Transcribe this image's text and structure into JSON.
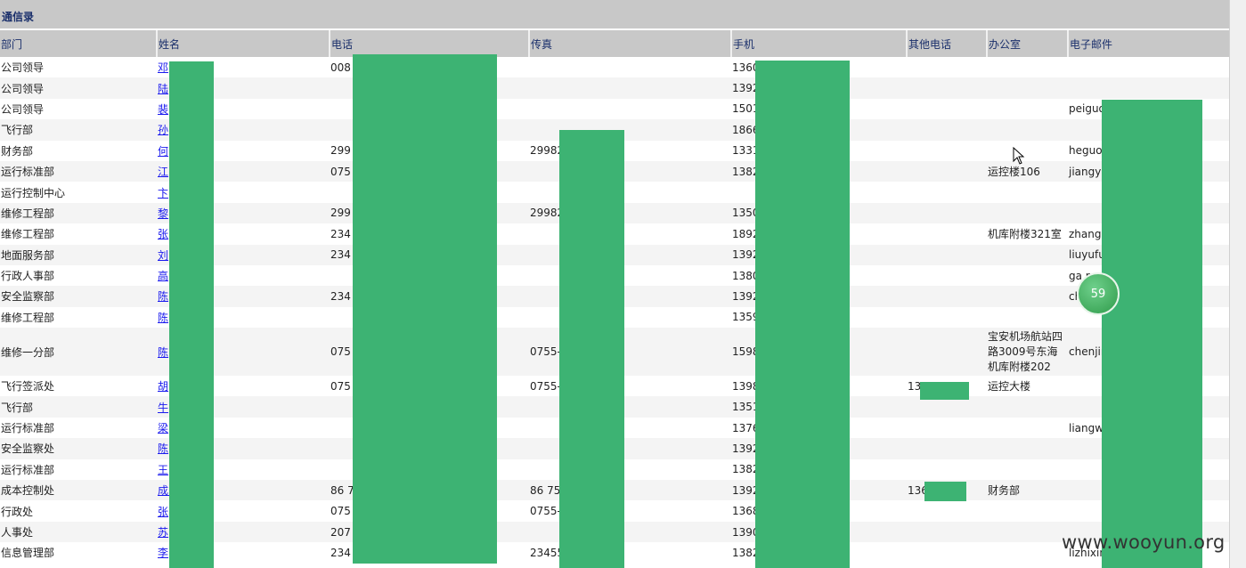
{
  "title": "通信录",
  "columns": [
    "部门",
    "姓名",
    "电话",
    "传真",
    "手机",
    "其他电话",
    "办公室",
    "电子邮件"
  ],
  "rows": [
    {
      "dept": "公司领导",
      "name": "邓",
      "phone": "008",
      "fax": "",
      "mobile": "1360",
      "other": "",
      "office": "",
      "email": ""
    },
    {
      "dept": "公司领导",
      "name": "陆",
      "phone": "",
      "fax": "",
      "mobile": "1392",
      "other": "",
      "office": "",
      "email": ""
    },
    {
      "dept": "公司领导",
      "name": "裴",
      "phone": "",
      "fax": "",
      "mobile": "1501",
      "other": "",
      "office": "",
      "email": "peiguo"
    },
    {
      "dept": "飞行部",
      "name": "孙",
      "phone": "",
      "fax": "",
      "mobile": "1866",
      "other": "",
      "office": "",
      "email": ""
    },
    {
      "dept": "财务部",
      "name": "何",
      "phone": "299",
      "fax": "29982",
      "mobile": "1331",
      "other": "",
      "office": "",
      "email": "heguo"
    },
    {
      "dept": "运行标准部",
      "name": "江",
      "phone": "075",
      "fax": "",
      "mobile": "1382",
      "other": "",
      "office": "运控楼106",
      "email": "jiangyi"
    },
    {
      "dept": "运行控制中心",
      "name": "卞",
      "phone": "",
      "fax": "",
      "mobile": "",
      "other": "",
      "office": "",
      "email": ""
    },
    {
      "dept": "维修工程部",
      "name": "黎",
      "phone": "299",
      "fax": "29982",
      "mobile": "1350",
      "other": "",
      "office": "",
      "email": ""
    },
    {
      "dept": "维修工程部",
      "name": "张",
      "phone": "234",
      "fax": "",
      "mobile": "1892",
      "other": "",
      "office": "机库附楼321室",
      "email": "zhang                              air.cn"
    },
    {
      "dept": "地面服务部",
      "name": "刘",
      "phone": "234",
      "fax": "",
      "mobile": "1392",
      "other": "",
      "office": "",
      "email": "liuyufu"
    },
    {
      "dept": "行政人事部",
      "name": "高",
      "phone": "",
      "fax": "",
      "mobile": "1380",
      "other": "",
      "office": "",
      "email": "ga                                  r.cn"
    },
    {
      "dept": "安全监察部",
      "name": "陈",
      "phone": "234",
      "fax": "",
      "mobile": "1392",
      "other": "",
      "office": "",
      "email": "ch                                  n"
    },
    {
      "dept": "维修工程部",
      "name": "陈",
      "phone": "",
      "fax": "",
      "mobile": "1359",
      "other": "",
      "office": "",
      "email": ""
    },
    {
      "dept": "维修一分部",
      "name": "陈",
      "phone": "075",
      "fax": "0755-",
      "mobile": "1598",
      "other": "",
      "office": "宝安机场航站四路3009号东海机库附楼202",
      "email": "chenjin                            n"
    },
    {
      "dept": "飞行签派处",
      "name": "胡",
      "phone": "075",
      "fax": "0755-",
      "mobile": "1398",
      "other": "13          6",
      "office": "运控大楼",
      "email": ""
    },
    {
      "dept": "飞行部",
      "name": "牛",
      "phone": "",
      "fax": "",
      "mobile": "1351",
      "other": "",
      "office": "",
      "email": ""
    },
    {
      "dept": "运行标准部",
      "name": "梁",
      "phone": "",
      "fax": "",
      "mobile": "1376",
      "other": "",
      "office": "",
      "email": "liangw                              n"
    },
    {
      "dept": "安全监察处",
      "name": "陈",
      "phone": "",
      "fax": "",
      "mobile": "1392",
      "other": "",
      "office": "",
      "email": ""
    },
    {
      "dept": "运行标准部",
      "name": "王",
      "phone": "",
      "fax": "",
      "mobile": "1382",
      "other": "",
      "office": "",
      "email": ""
    },
    {
      "dept": "成本控制处",
      "name": "成            经理",
      "phone": "86 7",
      "fax": "86 75",
      "mobile": "1392",
      "other": "136        39",
      "office": "财务部",
      "email": ""
    },
    {
      "dept": "行政处",
      "name": "张",
      "phone": "075",
      "fax": "0755-",
      "mobile": "1368",
      "other": "",
      "office": "",
      "email": ""
    },
    {
      "dept": "人事处",
      "name": "苏",
      "phone": "207",
      "fax": "",
      "mobile": "1390",
      "other": "",
      "office": "",
      "email": ""
    },
    {
      "dept": "信息管理部",
      "name": "李",
      "phone": "234",
      "fax": "23455",
      "mobile": "1382",
      "other": "",
      "office": "",
      "email": "lizhixin"
    }
  ],
  "badge_text": "59",
  "watermark": "www.wooyun.org",
  "colors": {
    "header_bg": "#c8c8c8",
    "header_text": "#1a2f6b",
    "link": "#1a1aee",
    "redaction": "#3db373"
  }
}
